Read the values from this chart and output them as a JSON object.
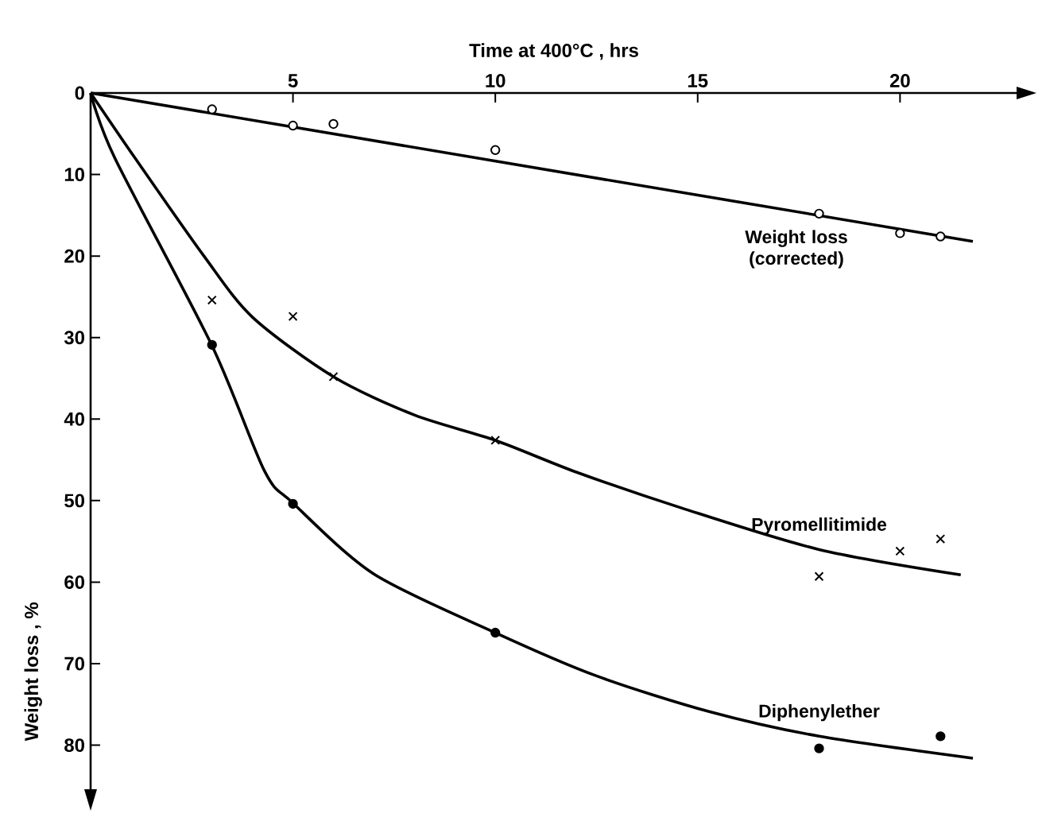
{
  "chart_data": {
    "type": "scatter",
    "xlabel": "Time at 400°C , hrs",
    "ylabel": "Weight loss , %",
    "xlim": [
      0,
      22.9
    ],
    "ylim": [
      85.5,
      0
    ],
    "xticks": [
      5,
      10,
      15,
      20
    ],
    "yticks": [
      0,
      10,
      20,
      30,
      40,
      50,
      60,
      70,
      80
    ],
    "grid": false,
    "series": [
      {
        "type": "line",
        "name": "Weight loss (corrected)",
        "color": "#000000",
        "marker": "none",
        "x": [
          0,
          21.8
        ],
        "values": [
          0,
          18.2
        ]
      },
      {
        "type": "line",
        "name": "Pyromellitimide",
        "color": "#000000",
        "marker": "none",
        "x": [
          0,
          1.1,
          2.8,
          4,
          6,
          8,
          10,
          12,
          14.6,
          18,
          21.5
        ],
        "values": [
          0,
          8,
          20,
          27.5,
          34.8,
          39.5,
          42.6,
          46.5,
          50.9,
          56,
          59.1
        ]
      },
      {
        "type": "line",
        "name": "Diphenylether",
        "color": "#000000",
        "marker": "none",
        "x": [
          0,
          0.6,
          3,
          4.3,
          5,
          7,
          10,
          12.5,
          15.3,
          18,
          21.8
        ],
        "values": [
          0,
          8,
          31,
          46.4,
          50.3,
          59,
          66.2,
          71.5,
          75.9,
          78.9,
          81.6
        ]
      },
      {
        "color": "#000000",
        "marker": "circle open",
        "x": [
          3,
          5,
          6,
          10,
          18,
          20,
          21
        ],
        "values": [
          2,
          4,
          3.8,
          7,
          14.8,
          17.2,
          17.6
        ]
      },
      {
        "color": "#000000",
        "marker": "cross",
        "x": [
          3,
          5,
          6,
          10,
          18,
          20,
          21
        ],
        "values": [
          25.4,
          27.4,
          34.8,
          42.6,
          59.3,
          56.2,
          54.7
        ]
      },
      {
        "color": "#000000",
        "marker": "circle",
        "x": [
          3,
          5,
          10,
          18,
          21
        ],
        "values": [
          30.9,
          50.4,
          66.2,
          80.4,
          78.9
        ]
      }
    ]
  }
}
